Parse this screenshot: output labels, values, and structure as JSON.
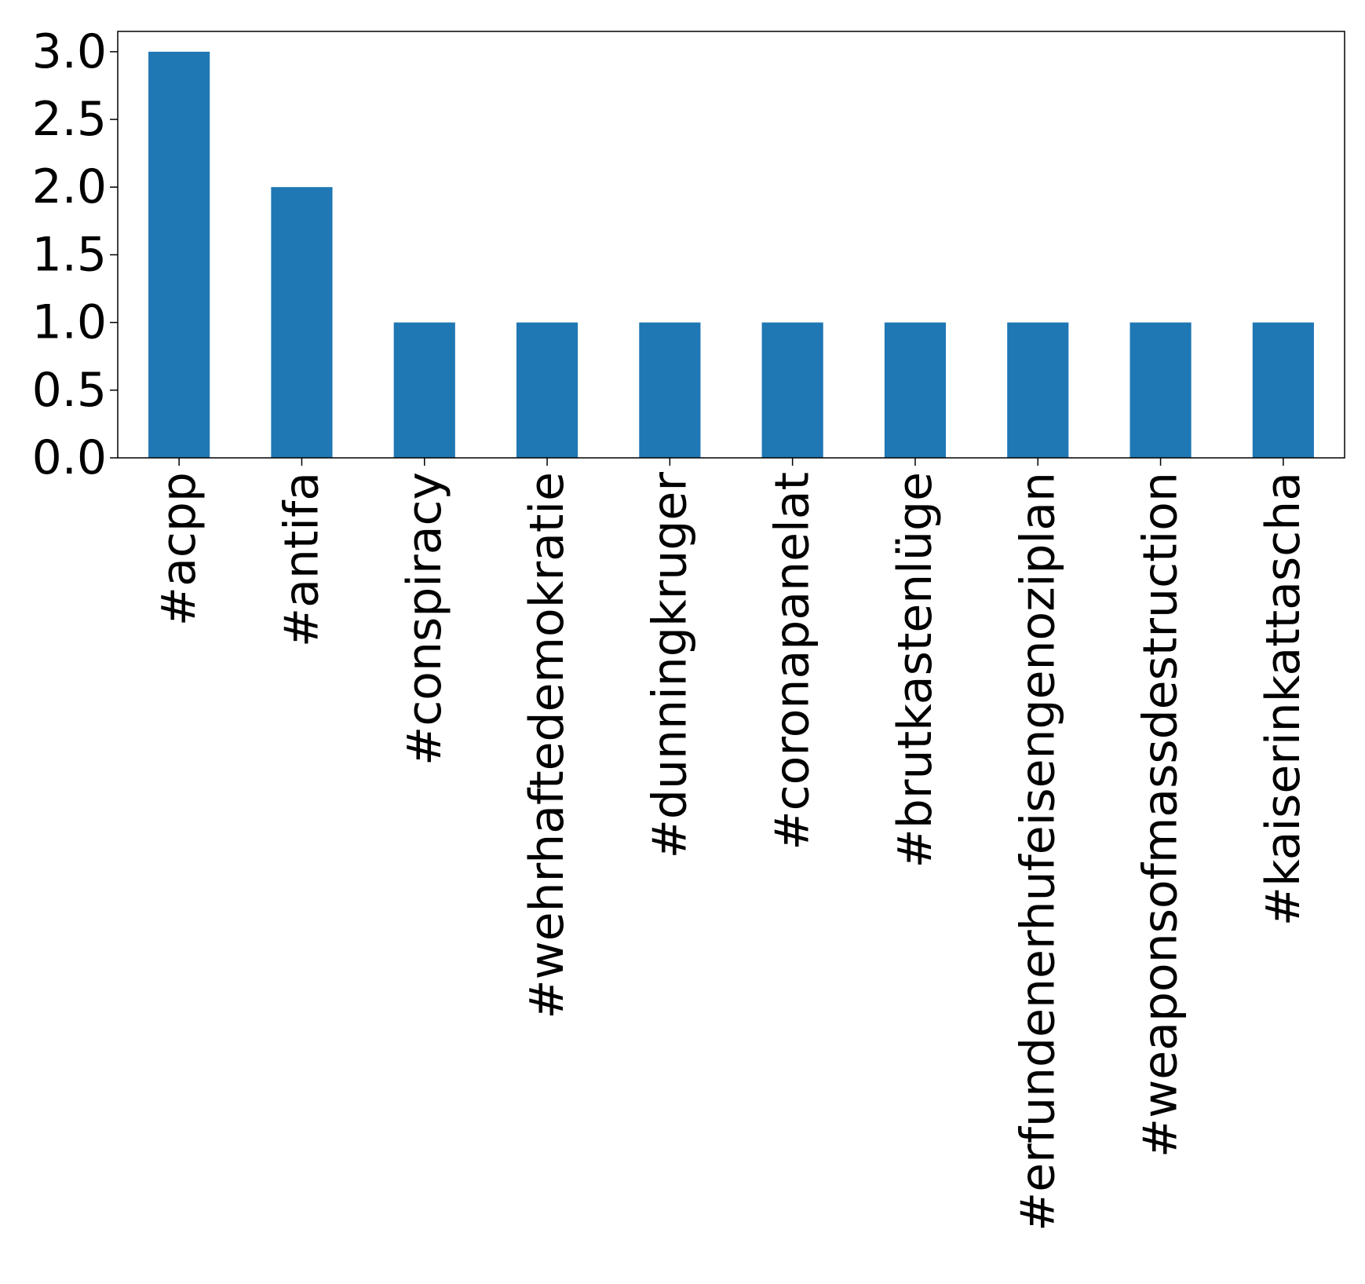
{
  "chart_data": {
    "type": "bar",
    "categories": [
      "#acpp",
      "#antifa",
      "#conspiracy",
      "#wehrhaftedemokratie",
      "#dunningkruger",
      "#coronapanelat",
      "#brutkastenlüge",
      "#erfundenerhufeisengenoziplan",
      "#weaponsofmassdestruction",
      "#kaiserinkattascha"
    ],
    "values": [
      3,
      2,
      1,
      1,
      1,
      1,
      1,
      1,
      1,
      1
    ],
    "title": "",
    "xlabel": "",
    "ylabel": "",
    "ylim": [
      0,
      3.15
    ],
    "yticks": [
      0,
      0.5,
      1,
      1.5,
      2,
      2.5,
      3
    ],
    "ytick_labels": [
      "0.0",
      "0.5",
      "1.0",
      "1.5",
      "2.0",
      "2.5",
      "3.0"
    ],
    "grid": false,
    "legend": "none",
    "colors": {
      "bar": "#1f77b4",
      "axis": "#000000"
    }
  }
}
